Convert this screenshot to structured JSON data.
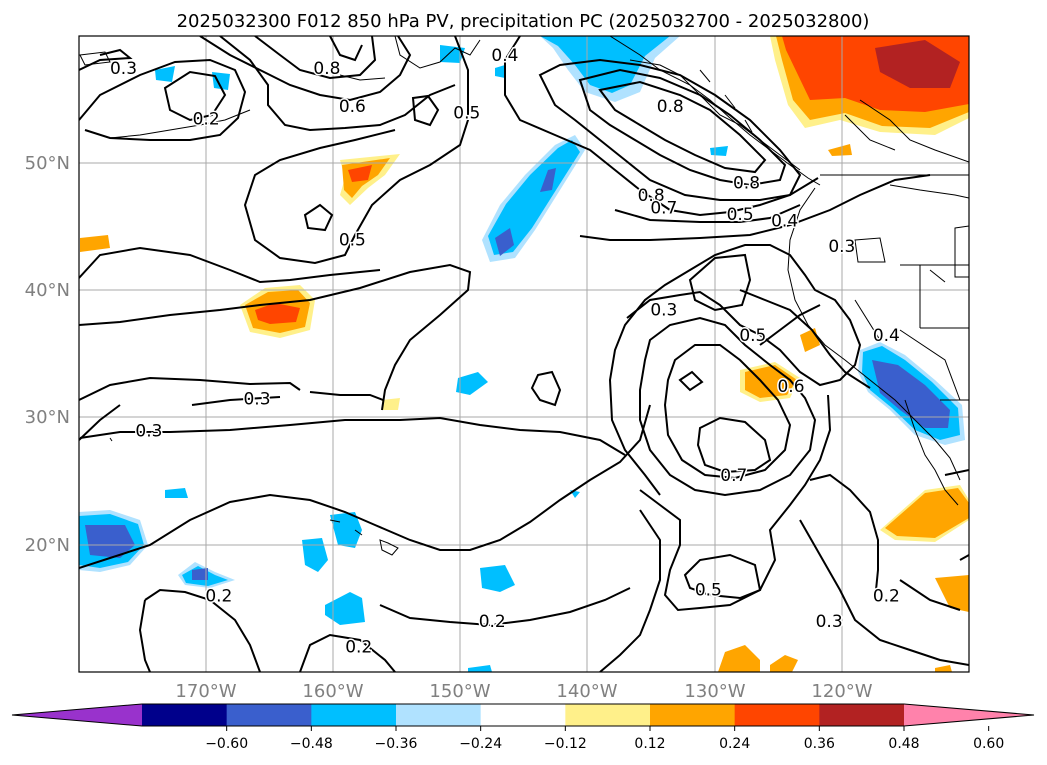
{
  "chart_data": {
    "type": "map-contour",
    "title": "2025032300 F012 850 hPa PV, precipitation PC (2025032700 - 2025032800)",
    "lat_labels": [
      "50°N",
      "40°N",
      "30°N",
      "20°N"
    ],
    "lat_values": [
      50,
      40,
      30,
      20
    ],
    "lon_labels": [
      "170°W",
      "160°W",
      "150°W",
      "140°W",
      "130°W",
      "120°W"
    ],
    "lon_values": [
      -170,
      -160,
      -150,
      -140,
      -130,
      -120
    ],
    "extent": {
      "lon": [
        -180,
        -110
      ],
      "lat": [
        10,
        60
      ]
    },
    "colorbar": {
      "ticks": [
        "−0.60",
        "−0.48",
        "−0.36",
        "−0.24",
        "−0.12",
        "0.12",
        "0.24",
        "0.36",
        "0.48",
        "0.60"
      ],
      "colors": [
        "#9932cc",
        "#00008b",
        "#3a5fcd",
        "#00bfff",
        "#b0e2ff",
        "#ffffff",
        "#fff08a",
        "#ffa500",
        "#ff4500",
        "#b22222",
        "#ff82ab"
      ],
      "extend": "both"
    },
    "contour_labels": [
      {
        "text": "0.3",
        "lon": -176.5,
        "lat": 57.5
      },
      {
        "text": "0.8",
        "lon": -160.5,
        "lat": 57.5
      },
      {
        "text": "0.4",
        "lon": -146.5,
        "lat": 58.5
      },
      {
        "text": "0.2",
        "lon": -170,
        "lat": 53.5
      },
      {
        "text": "0.6",
        "lon": -158.5,
        "lat": 54.5
      },
      {
        "text": "0.5",
        "lon": -149.5,
        "lat": 54
      },
      {
        "text": "0.8",
        "lon": -133.5,
        "lat": 54.5
      },
      {
        "text": "0.8",
        "lon": -135,
        "lat": 47.5
      },
      {
        "text": "0.7",
        "lon": -134,
        "lat": 46.5
      },
      {
        "text": "0.8",
        "lon": -127.5,
        "lat": 48.5
      },
      {
        "text": "0.5",
        "lon": -128,
        "lat": 46
      },
      {
        "text": "0.4",
        "lon": -124.5,
        "lat": 45.5
      },
      {
        "text": "0.3",
        "lon": -120,
        "lat": 43.5
      },
      {
        "text": "0.5",
        "lon": -158.5,
        "lat": 44
      },
      {
        "text": "0.3",
        "lon": -134,
        "lat": 38.5
      },
      {
        "text": "0.5",
        "lon": -127,
        "lat": 36.5
      },
      {
        "text": "0.4",
        "lon": -116.5,
        "lat": 36.5
      },
      {
        "text": "0.6",
        "lon": -124,
        "lat": 32.5
      },
      {
        "text": "0.3",
        "lon": -166,
        "lat": 31.5
      },
      {
        "text": "0.3",
        "lon": -174.5,
        "lat": 29
      },
      {
        "text": "0.7",
        "lon": -128.5,
        "lat": 25.5
      },
      {
        "text": "0.5",
        "lon": -130.5,
        "lat": 16.5
      },
      {
        "text": "0.2",
        "lon": -169,
        "lat": 16
      },
      {
        "text": "0.2",
        "lon": -116.5,
        "lat": 16
      },
      {
        "text": "0.2",
        "lon": -147.5,
        "lat": 14
      },
      {
        "text": "0.3",
        "lon": -121,
        "lat": 14
      },
      {
        "text": "0.2",
        "lon": -158,
        "lat": 12
      }
    ]
  }
}
